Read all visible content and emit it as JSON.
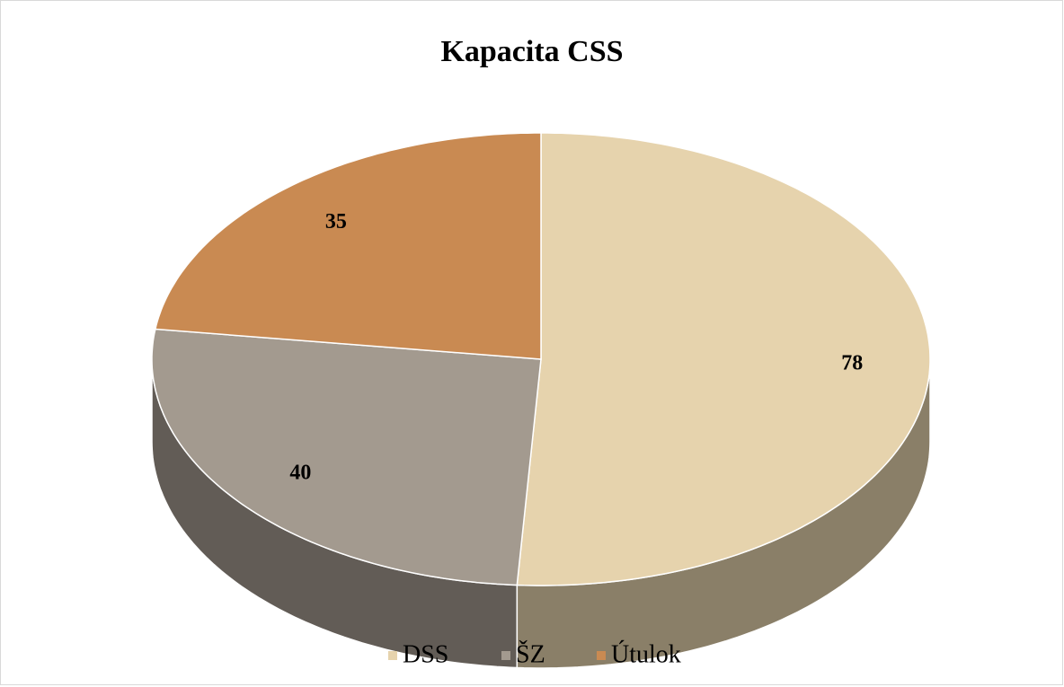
{
  "chart_data": {
    "type": "pie",
    "title": "Kapacita CSS",
    "categories": [
      "DSS",
      "ŠZ",
      "Útulok"
    ],
    "values": [
      78,
      40,
      35
    ],
    "colors": [
      "#e6d3ad",
      "#a39a8f",
      "#c98a52"
    ],
    "legend": "bottom"
  }
}
